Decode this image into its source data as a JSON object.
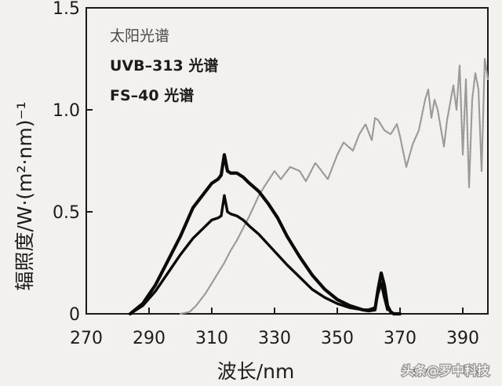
{
  "chart_data": {
    "type": "line",
    "xlabel": "波长/nm",
    "ylabel": "辐照度/W·(m²·nm)⁻¹",
    "xlim": [
      270,
      398
    ],
    "ylim": [
      0,
      1.5
    ],
    "x_ticks": [
      "270",
      "290",
      "310",
      "330",
      "350",
      "370",
      "390"
    ],
    "y_ticks": [
      "0",
      "0.5",
      "1.0",
      "1.5"
    ],
    "legend_placement": "top-left",
    "series": [
      {
        "name": "太阳光谱",
        "color": "#9a9a9a",
        "x": [
          300,
          303,
          305,
          308,
          310,
          312,
          314,
          316,
          318,
          320,
          322,
          325,
          327,
          330,
          332,
          335,
          338,
          340,
          343,
          345,
          347,
          350,
          352,
          355,
          357,
          359,
          361,
          362,
          363,
          365,
          367,
          369,
          370,
          372,
          374,
          376,
          378,
          379,
          380,
          381,
          382,
          384,
          385,
          387,
          388,
          389,
          390,
          391,
          392,
          393,
          394,
          395,
          396,
          397,
          398
        ],
        "y": [
          0.0,
          0.01,
          0.04,
          0.1,
          0.15,
          0.2,
          0.25,
          0.31,
          0.36,
          0.42,
          0.48,
          0.58,
          0.63,
          0.7,
          0.66,
          0.72,
          0.7,
          0.65,
          0.74,
          0.7,
          0.66,
          0.78,
          0.84,
          0.8,
          0.88,
          0.93,
          0.85,
          0.96,
          0.95,
          0.9,
          0.88,
          0.93,
          0.87,
          0.72,
          0.83,
          0.9,
          1.05,
          1.1,
          0.96,
          1.05,
          1.0,
          0.82,
          0.95,
          1.12,
          1.0,
          1.22,
          0.78,
          1.15,
          0.62,
          1.05,
          1.18,
          1.1,
          0.7,
          1.25,
          1.15
        ]
      },
      {
        "name": "UVB–313 光谱",
        "color": "#0a0a0a",
        "x": [
          284,
          288,
          292,
          296,
          300,
          304,
          308,
          310,
          312,
          313,
          314,
          315,
          316,
          318,
          320,
          322,
          325,
          328,
          331,
          334,
          338,
          342,
          346,
          350,
          354,
          358,
          360,
          362,
          363,
          364,
          365,
          366,
          367,
          368,
          369,
          370
        ],
        "y": [
          0.0,
          0.05,
          0.14,
          0.26,
          0.38,
          0.52,
          0.6,
          0.64,
          0.66,
          0.68,
          0.78,
          0.7,
          0.69,
          0.69,
          0.67,
          0.64,
          0.6,
          0.54,
          0.47,
          0.38,
          0.28,
          0.19,
          0.12,
          0.07,
          0.04,
          0.02,
          0.015,
          0.02,
          0.12,
          0.2,
          0.14,
          0.04,
          0.01,
          0.0,
          0.0,
          0.0
        ]
      },
      {
        "name": "FS–40 光谱",
        "color": "#0a0a0a",
        "x": [
          284,
          288,
          292,
          296,
          300,
          304,
          308,
          310,
          312,
          313,
          314,
          315,
          316,
          318,
          320,
          322,
          325,
          328,
          331,
          334,
          338,
          342,
          346,
          350,
          354,
          358,
          360,
          362,
          363,
          364,
          365,
          366
        ],
        "y": [
          0.0,
          0.04,
          0.11,
          0.2,
          0.29,
          0.37,
          0.43,
          0.46,
          0.47,
          0.48,
          0.58,
          0.5,
          0.49,
          0.48,
          0.46,
          0.43,
          0.39,
          0.34,
          0.29,
          0.24,
          0.18,
          0.12,
          0.08,
          0.05,
          0.03,
          0.02,
          0.02,
          0.03,
          0.1,
          0.15,
          0.08,
          0.02
        ]
      }
    ]
  },
  "watermark": {
    "text": "头条@罗中科技"
  }
}
